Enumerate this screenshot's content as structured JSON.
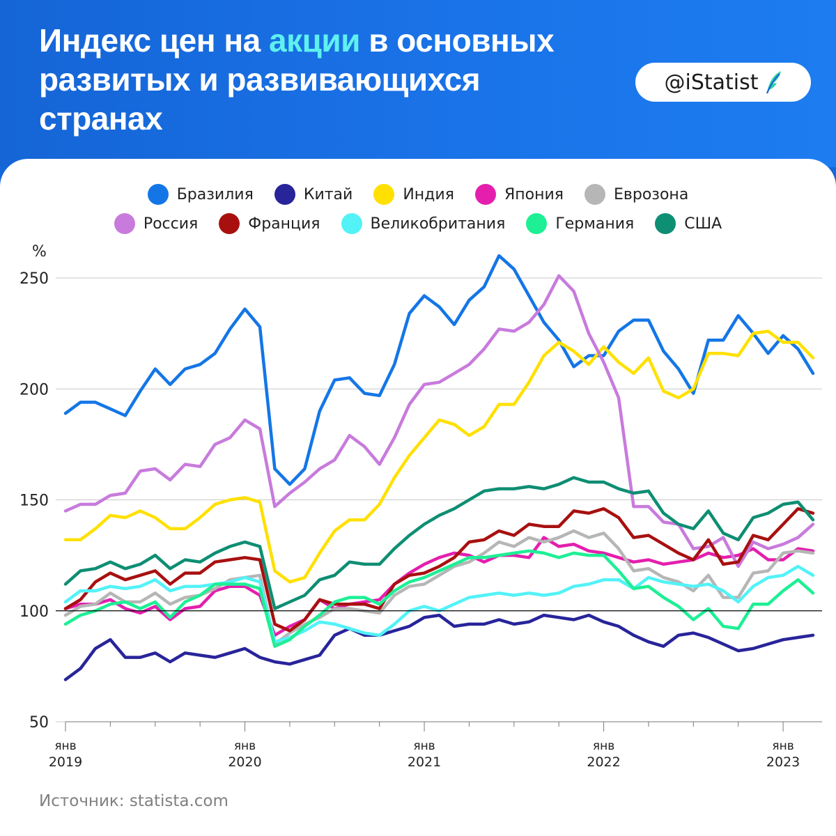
{
  "header": {
    "title_line1_a": "Индекс цен на ",
    "title_line1_accent": "акции",
    "title_line1_b": " в основных",
    "title_line2": "развитых и развивающихся",
    "title_line3": "странах",
    "badge": "@iStatist",
    "badge_icon": "feather-logo-icon"
  },
  "source": "Источник: statista.com",
  "colors": {
    "header_bg": "#1565d6",
    "accent": "#5ff0f0",
    "baseline": "#000000"
  },
  "chart_data": {
    "type": "line",
    "title": "Индекс цен на акции в основных развитых и развивающихся странах",
    "ylabel": "%",
    "ylim": [
      50,
      260
    ],
    "yticks": [
      50,
      100,
      150,
      200,
      250
    ],
    "x_start": "2019-01",
    "x_end": "2023-03",
    "x_ticks": [
      {
        "month": 0,
        "line1": "янв",
        "line2": "2019"
      },
      {
        "month": 12,
        "line1": "янв",
        "line2": "2020"
      },
      {
        "month": 24,
        "line1": "янв",
        "line2": "2021"
      },
      {
        "month": 36,
        "line1": "янв",
        "line2": "2022"
      },
      {
        "month": 48,
        "line1": "янв",
        "line2": "2023"
      }
    ],
    "reference_line": 100,
    "series": [
      {
        "name": "Бразилия",
        "color": "#1476e6",
        "values": [
          189,
          194,
          194,
          191,
          188,
          199,
          209,
          202,
          209,
          211,
          216,
          227,
          236,
          228,
          164,
          157,
          164,
          190,
          204,
          205,
          198,
          197,
          211,
          234,
          242,
          237,
          229,
          240,
          246,
          260,
          254,
          242,
          230,
          222,
          210,
          215,
          215,
          226,
          231,
          231,
          217,
          209,
          198,
          222,
          222,
          233,
          225,
          216,
          224,
          218,
          207
        ]
      },
      {
        "name": "Китай",
        "color": "#28249a",
        "values": [
          69,
          74,
          83,
          87,
          79,
          79,
          81,
          77,
          81,
          80,
          79,
          81,
          83,
          79,
          77,
          76,
          78,
          80,
          89,
          92,
          89,
          89,
          91,
          93,
          97,
          98,
          93,
          94,
          94,
          96,
          94,
          95,
          98,
          97,
          96,
          98,
          95,
          93,
          89,
          86,
          84,
          89,
          90,
          88,
          85,
          82,
          83,
          85,
          87,
          88,
          89
        ]
      },
      {
        "name": "Индия",
        "color": "#ffe000",
        "values": [
          132,
          132,
          137,
          143,
          142,
          145,
          142,
          137,
          137,
          142,
          148,
          150,
          151,
          149,
          118,
          113,
          115,
          126,
          136,
          141,
          141,
          148,
          160,
          170,
          178,
          186,
          184,
          179,
          183,
          193,
          193,
          203,
          215,
          221,
          217,
          211,
          219,
          212,
          207,
          214,
          199,
          196,
          200,
          216,
          216,
          215,
          225,
          226,
          221,
          221,
          214
        ]
      },
      {
        "name": "Япония",
        "color": "#e41fae",
        "values": [
          101,
          103,
          103,
          105,
          101,
          99,
          102,
          96,
          101,
          102,
          109,
          111,
          111,
          107,
          89,
          93,
          96,
          105,
          101,
          103,
          104,
          105,
          112,
          117,
          121,
          124,
          126,
          125,
          122,
          125,
          125,
          124,
          133,
          129,
          130,
          127,
          126,
          124,
          122,
          123,
          121,
          122,
          123,
          126,
          124,
          125,
          128,
          123,
          123,
          128,
          127
        ]
      },
      {
        "name": "Еврозона",
        "color": "#b6b6b6",
        "values": [
          98,
          102,
          103,
          108,
          104,
          104,
          108,
          103,
          106,
          107,
          110,
          114,
          115,
          116,
          85,
          90,
          94,
          97,
          101,
          101,
          100,
          99,
          107,
          111,
          112,
          116,
          120,
          122,
          126,
          131,
          129,
          133,
          131,
          133,
          136,
          133,
          135,
          128,
          118,
          119,
          115,
          113,
          109,
          116,
          106,
          106,
          117,
          118,
          126,
          127,
          126
        ]
      },
      {
        "name": "Россия",
        "color": "#c87bdc",
        "values": [
          145,
          148,
          148,
          152,
          153,
          163,
          164,
          159,
          166,
          165,
          175,
          178,
          186,
          182,
          147,
          153,
          158,
          164,
          168,
          179,
          174,
          166,
          178,
          193,
          202,
          203,
          207,
          211,
          218,
          227,
          226,
          230,
          238,
          251,
          244,
          225,
          212,
          196,
          147,
          147,
          140,
          139,
          128,
          129,
          133,
          120,
          131,
          128,
          130,
          133,
          139
        ]
      },
      {
        "name": "Франция",
        "color": "#a81010",
        "values": [
          101,
          105,
          113,
          117,
          114,
          116,
          118,
          112,
          117,
          117,
          122,
          123,
          124,
          123,
          94,
          91,
          96,
          105,
          103,
          103,
          103,
          101,
          112,
          116,
          117,
          120,
          124,
          131,
          132,
          136,
          134,
          139,
          138,
          138,
          145,
          144,
          146,
          142,
          133,
          134,
          130,
          126,
          123,
          132,
          121,
          122,
          134,
          132,
          139,
          146,
          144
        ]
      },
      {
        "name": "Великобритания",
        "color": "#52f2f7",
        "values": [
          104,
          109,
          109,
          111,
          110,
          111,
          114,
          109,
          111,
          111,
          112,
          113,
          115,
          113,
          86,
          88,
          91,
          95,
          94,
          92,
          90,
          89,
          94,
          100,
          102,
          100,
          103,
          106,
          107,
          108,
          107,
          108,
          107,
          108,
          111,
          112,
          114,
          114,
          110,
          115,
          113,
          112,
          111,
          112,
          109,
          104,
          111,
          115,
          116,
          120,
          116
        ]
      },
      {
        "name": "Германия",
        "color": "#1eef95",
        "values": [
          94,
          98,
          100,
          103,
          104,
          101,
          104,
          97,
          104,
          107,
          112,
          112,
          112,
          110,
          84,
          87,
          93,
          98,
          104,
          106,
          106,
          103,
          109,
          113,
          115,
          118,
          121,
          124,
          124,
          125,
          126,
          127,
          126,
          124,
          126,
          125,
          125,
          118,
          110,
          111,
          106,
          102,
          96,
          101,
          93,
          92,
          103,
          103,
          109,
          114,
          108
        ]
      },
      {
        "name": "США",
        "color": "#0e8e73",
        "values": [
          112,
          118,
          119,
          122,
          119,
          121,
          125,
          119,
          123,
          122,
          126,
          129,
          131,
          129,
          101,
          104,
          107,
          114,
          116,
          122,
          121,
          121,
          128,
          134,
          139,
          143,
          146,
          150,
          154,
          155,
          155,
          156,
          155,
          157,
          160,
          158,
          158,
          155,
          153,
          154,
          144,
          139,
          137,
          145,
          135,
          132,
          142,
          144,
          148,
          149,
          141
        ]
      }
    ]
  }
}
